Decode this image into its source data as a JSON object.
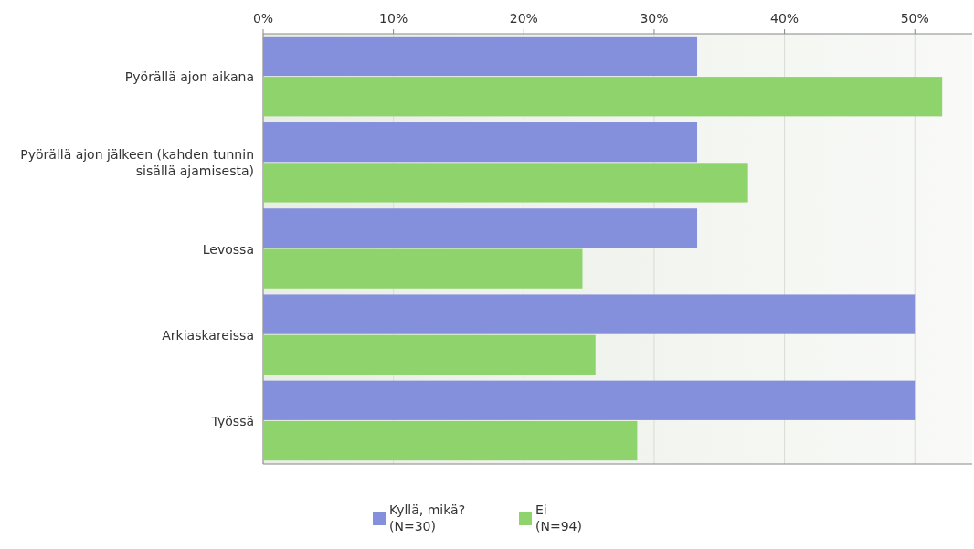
{
  "chart_data": {
    "type": "bar",
    "orientation": "horizontal",
    "categories": [
      "Pyörällä ajon aikana",
      "Pyörällä ajon jälkeen (kahden tunnin sisällä ajamisesta)",
      "Levossa",
      "Arkiaskareissa",
      "Työssä"
    ],
    "series": [
      {
        "name": "Kyllä, mikä?\n(N=30)",
        "color": "#8590dc",
        "values": [
          33.3,
          33.3,
          33.3,
          50.0,
          50.0
        ]
      },
      {
        "name": "Ei\n(N=94)",
        "color": "#8ed36c",
        "values": [
          52.1,
          37.2,
          24.5,
          25.5,
          28.7
        ]
      }
    ],
    "xlim": [
      0,
      54.4
    ],
    "xticks": [
      {
        "value": 0,
        "label": "0%"
      },
      {
        "value": 10,
        "label": "10%"
      },
      {
        "value": 20,
        "label": "20%"
      },
      {
        "value": 30,
        "label": "30%"
      },
      {
        "value": 40,
        "label": "40%"
      },
      {
        "value": 50,
        "label": "50%"
      }
    ],
    "grid": "x",
    "legend": "bottom"
  }
}
